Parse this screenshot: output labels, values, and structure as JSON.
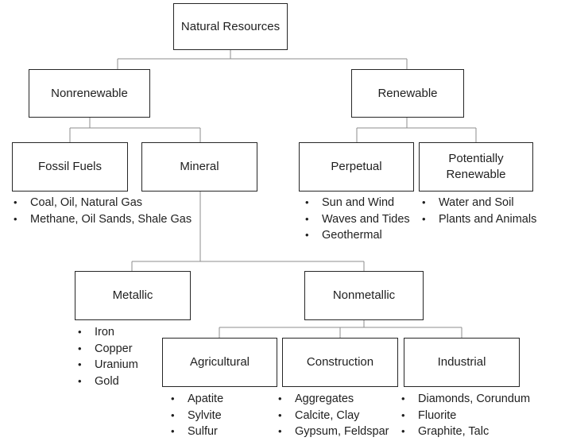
{
  "nodes": {
    "root": "Natural Resources",
    "nonrenewable": "Nonrenewable",
    "renewable": "Renewable",
    "fossil_fuels": "Fossil Fuels",
    "mineral": "Mineral",
    "perpetual": "Perpetual",
    "potentially_renewable_line1": "Potentially",
    "potentially_renewable_line2": "Renewable",
    "metallic": "Metallic",
    "nonmetallic": "Nonmetallic",
    "agricultural": "Agricultural",
    "construction": "Construction",
    "industrial": "Industrial"
  },
  "lists": {
    "fossil_fuels": [
      "Coal, Oil, Natural Gas",
      "Methane, Oil Sands, Shale Gas"
    ],
    "perpetual": [
      "Sun and Wind",
      "Waves and Tides",
      "Geothermal"
    ],
    "potentially_renewable": [
      "Water and Soil",
      "Plants and Animals"
    ],
    "metallic": [
      "Iron",
      "Copper",
      "Uranium",
      "Gold"
    ],
    "agricultural": [
      "Apatite",
      "Sylvite",
      "Sulfur"
    ],
    "construction": [
      "Aggregates",
      "Calcite, Clay",
      "Gypsum, Feldspar"
    ],
    "industrial": [
      "Diamonds, Corundum",
      "Fluorite",
      "Graphite, Talc"
    ]
  }
}
